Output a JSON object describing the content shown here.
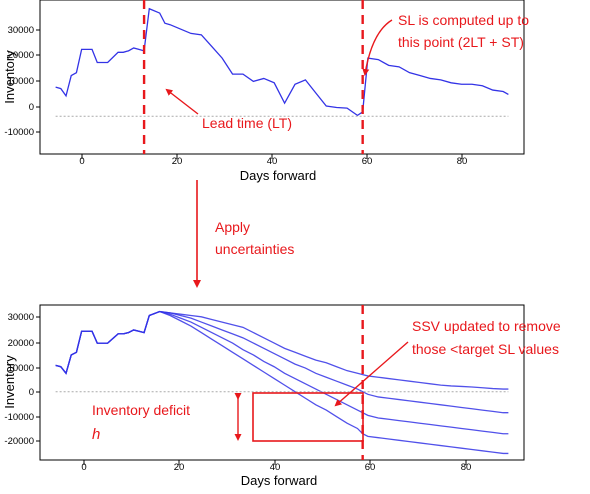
{
  "top_chart": {
    "ylabel": "Inventory",
    "xlabel": "Days forward",
    "y_ticks": [
      "30000",
      "20000",
      "10000",
      "0",
      "-10000"
    ],
    "x_ticks": [
      "0",
      "20",
      "40",
      "60",
      "80"
    ],
    "annotations": {
      "lead_time": "Lead time (LT)",
      "sl_line1": "SL is computed up to",
      "sl_line2": "this point (2LT + ST)"
    }
  },
  "middle": {
    "line1": "Apply",
    "line2": "uncertainties"
  },
  "bottom_chart": {
    "ylabel": "Inventory",
    "xlabel": "Days forward",
    "y_ticks": [
      "30000",
      "20000",
      "10000",
      "0",
      "-10000",
      "-20000"
    ],
    "x_ticks": [
      "0",
      "20",
      "40",
      "60",
      "80"
    ],
    "annotations": {
      "ssv_line1": "SSV updated to remove",
      "ssv_line2": "those <target SL values",
      "deficit_label": "Inventory deficit",
      "deficit_symbol": "h"
    }
  },
  "colors": {
    "series": "#3333e6",
    "annotation": "#e8181c",
    "zero_line": "#aaaaaa"
  },
  "chart_data": [
    {
      "type": "line",
      "title": "",
      "xlabel": "Days forward",
      "ylabel": "Inventory",
      "xlim": [
        -3,
        90
      ],
      "ylim": [
        -13000,
        40000
      ],
      "grid": false,
      "x": [
        0,
        1,
        2,
        3,
        4,
        5,
        7,
        8,
        9,
        10,
        12,
        13,
        14,
        15,
        16,
        17,
        18,
        20,
        21,
        22,
        24,
        26,
        28,
        30,
        32,
        34,
        36,
        38,
        40,
        42,
        44,
        46,
        48,
        50,
        52,
        54,
        56,
        58,
        59,
        60,
        62,
        64,
        66,
        68,
        70,
        72,
        74,
        76,
        78,
        80,
        82,
        84,
        86,
        87
      ],
      "series": [
        {
          "values": [
            10000,
            9500,
            7000,
            14000,
            15000,
            23000,
            23000,
            18500,
            18500,
            18500,
            22000,
            22000,
            22500,
            23500,
            23000,
            22500,
            37000,
            35500,
            32000,
            31500,
            30000,
            28500,
            28000,
            24000,
            20000,
            14500,
            14500,
            12000,
            13000,
            11500,
            4500,
            11000,
            12500,
            8000,
            3500,
            3000,
            2800,
            300,
            1500,
            20000,
            19500,
            17500,
            17000,
            15000,
            14000,
            13000,
            12500,
            11500,
            11000,
            11000,
            10500,
            9000,
            8500,
            7500
          ]
        }
      ],
      "reference_lines": [
        {
          "axis": "x",
          "value": 17
        },
        {
          "axis": "x",
          "value": 59
        },
        {
          "axis": "y",
          "value": 0
        }
      ]
    },
    {
      "type": "line",
      "title": "",
      "xlabel": "Days forward",
      "ylabel": "Inventory",
      "xlim": [
        -3,
        90
      ],
      "ylim": [
        -26000,
        33000
      ],
      "grid": false,
      "x": [
        0,
        1,
        2,
        3,
        4,
        5,
        7,
        8,
        9,
        10,
        12,
        13,
        14,
        15,
        16,
        17,
        18,
        20,
        22,
        24,
        26,
        28,
        30,
        32,
        34,
        36,
        38,
        40,
        42,
        44,
        46,
        48,
        50,
        52,
        54,
        56,
        58,
        59,
        60,
        62,
        64,
        66,
        68,
        70,
        72,
        74,
        76,
        78,
        80,
        82,
        84,
        86,
        87
      ],
      "series": [
        {
          "values": [
            10000,
            9500,
            7000,
            14000,
            15000,
            23000,
            23000,
            18500,
            18500,
            18500,
            22000,
            22000,
            22500,
            23500,
            23000,
            22500,
            29000,
            30500,
            30000,
            29500,
            29000,
            28500,
            27500,
            26500,
            25500,
            24500,
            22500,
            20500,
            18500,
            16500,
            15000,
            13500,
            12000,
            11000,
            9500,
            8000,
            7000,
            6500,
            6000,
            5500,
            5000,
            4500,
            4000,
            3500,
            3000,
            2500,
            2200,
            2000,
            1800,
            1500,
            1200,
            1000,
            1000
          ]
        },
        {
          "values": [
            10000,
            9500,
            7000,
            14000,
            15000,
            23000,
            23000,
            18500,
            18500,
            18500,
            22000,
            22000,
            22500,
            23500,
            23000,
            22500,
            29000,
            30500,
            30000,
            29000,
            28000,
            26500,
            25000,
            23500,
            22000,
            20500,
            18500,
            16500,
            14500,
            12500,
            10500,
            9000,
            7000,
            5500,
            4000,
            2500,
            1000,
            0,
            -1000,
            -2000,
            -2500,
            -3000,
            -3500,
            -4000,
            -4500,
            -5000,
            -5500,
            -6000,
            -6500,
            -7000,
            -7500,
            -8000,
            -8000
          ]
        },
        {
          "values": [
            10000,
            9500,
            7000,
            14000,
            15000,
            23000,
            23000,
            18500,
            18500,
            18500,
            22000,
            22000,
            22500,
            23500,
            23000,
            22500,
            29000,
            30500,
            29500,
            28000,
            26500,
            24500,
            22500,
            20500,
            18500,
            16000,
            14000,
            11500,
            9500,
            7000,
            5000,
            3000,
            1000,
            -1000,
            -3000,
            -5000,
            -7000,
            -8000,
            -9000,
            -10000,
            -10500,
            -11000,
            -11500,
            -12000,
            -12500,
            -13000,
            -13500,
            -14000,
            -14500,
            -15000,
            -15500,
            -16000,
            -16000
          ]
        },
        {
          "values": [
            10000,
            9500,
            7000,
            14000,
            15000,
            23000,
            23000,
            18500,
            18500,
            18500,
            22000,
            22000,
            22500,
            23500,
            23000,
            22500,
            29000,
            30500,
            29000,
            27000,
            25000,
            22500,
            20000,
            17500,
            15000,
            12500,
            10000,
            7500,
            5000,
            2500,
            0,
            -2500,
            -5000,
            -7000,
            -9500,
            -12000,
            -14000,
            -16000,
            -17000,
            -17500,
            -18000,
            -18500,
            -19000,
            -19500,
            -20000,
            -20500,
            -21000,
            -21500,
            -22000,
            -22500,
            -23000,
            -23500,
            -23500
          ]
        }
      ],
      "reference_lines": [
        {
          "axis": "x",
          "value": 59
        },
        {
          "axis": "y",
          "value": 0
        }
      ]
    }
  ]
}
